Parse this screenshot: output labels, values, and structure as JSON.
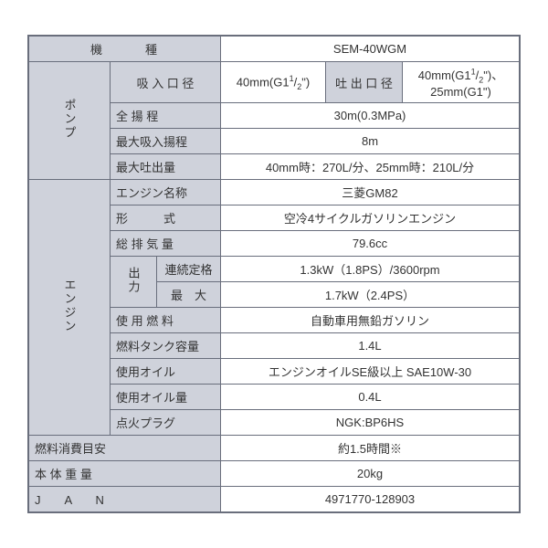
{
  "colors": {
    "header_bg": "#cfd2db",
    "value_bg": "#ffffff",
    "border": "#696e7c",
    "text": "#333333"
  },
  "header": {
    "model_label": "機　　　種",
    "model_value": "SEM-40WGM"
  },
  "pump": {
    "category": "ポンプ",
    "inlet_label": "吸 入 口 径",
    "inlet_value": "40mm(G1<sup>1</sup>/<sub>2</sub>\")",
    "outlet_label": "吐 出 口 径",
    "outlet_value": "40mm(G1<sup>1</sup>/<sub>2</sub>\")、25mm(G1\")",
    "total_head_label": "全 揚 程",
    "total_head_value": "30m(0.3MPa)",
    "max_suction_label": "最大吸入揚程",
    "max_suction_value": "8m",
    "max_discharge_label": "最大吐出量",
    "max_discharge_value": "40mm時：270L/分、25mm時：210L/分"
  },
  "engine": {
    "category": "エンジン",
    "name_label": "エンジン名称",
    "name_value": "三菱GM82",
    "type_label": "形　　　式",
    "type_value": "空冷4サイクルガソリンエンジン",
    "displacement_label": "総 排 気 量",
    "displacement_value": "79.6cc",
    "output_label": "出力",
    "output_cont_label": "連続定格",
    "output_cont_value": "1.3kW（1.8PS）/3600rpm",
    "output_max_label": "最　大",
    "output_max_value": "1.7kW（2.4PS）",
    "fuel_label": "使 用 燃 料",
    "fuel_value": "自動車用無鉛ガソリン",
    "tank_label": "燃料タンク容量",
    "tank_value": "1.4L",
    "oil_label": "使用オイル",
    "oil_value": "エンジンオイルSE級以上 SAE10W-30",
    "oil_amount_label": "使用オイル量",
    "oil_amount_value": "0.4L",
    "plug_label": "点火プラグ",
    "plug_value": "NGK:BP6HS"
  },
  "footer": {
    "consumption_label": "燃料消費目安",
    "consumption_value": "約1.5時間※",
    "weight_label": "本 体 重 量",
    "weight_value": "20kg",
    "jan_label": "J　　A　　N",
    "jan_value": "4971770-128903"
  }
}
